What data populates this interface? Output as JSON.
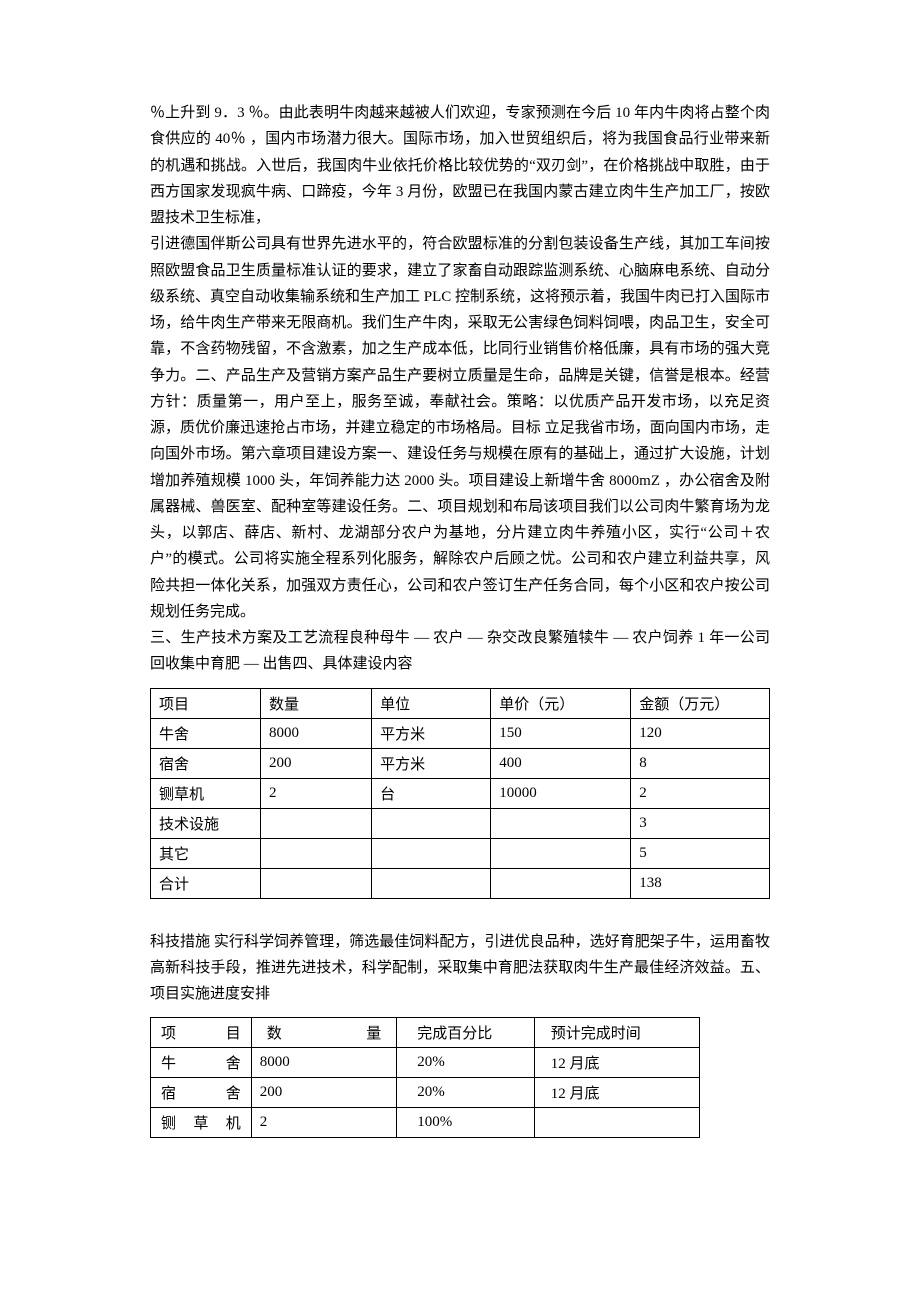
{
  "paragraphs": {
    "p1": "％上升到 9．3 ％。由此表明牛肉越来越被人们欢迎，专家预测在今后 10 年内牛肉将占整个肉食供应的 40％ ，国内市场潜力很大。国际市场，加入世贸组织后，将为我国食品行业带来新的机遇和挑战。入世后，我国肉牛业依托价格比较优势的“双刃剑”，在价格挑战中取胜，由于西方国家发现疯牛病、口蹄疫，今年 3 月份，欧盟已在我国内蒙古建立肉牛生产加工厂，按欧盟技术卫生标准，",
    "p2": "引进德国伴斯公司具有世界先进水平的，符合欧盟标准的分割包装设备生产线，其加工车间按照欧盟食品卫生质量标准认证的要求，建立了家畜自动跟踪监测系统、心脑麻电系统、自动分级系统、真空自动收集输系统和生产加工 PLC 控制系统，这将预示着，我国牛肉已打入国际市场，给牛肉生产带来无限商机。我们生产牛肉，采取无公害绿色饲料饲喂，肉品卫生，安全可靠，不含药物残留，不含激素，加之生产成本低，比同行业销售价格低廉，具有市场的强大竞争力。二、产品生产及营销方案产品生产要树立质量是生命，品牌是关键，信誉是根本。经营方针：质量第一，用户至上，服务至诚，奉献社会。策略：以优质产品开发市场，以充足资源，质优价廉迅速抢占市场，并建立稳定的市场格局。目标 立足我省市场，面向国内市场，走向国外市场。第六章项目建设方案一、建设任务与规模在原有的基础上，通过扩大设施，计划增加养殖规模 1000 头，年饲养能力达 2000 头。项目建设上新增牛舍 8000mZ ，办公宿舍及附属器械、兽医室、配种室等建设任务。二、项目规划和布局该项目我们以公司肉牛繁育场为龙头，以郭店、薛店、新村、龙湖部分农户为基地，分片建立肉牛养殖小区，实行“公司＋农户”的模式。公司将实施全程系列化服务，解除农户后顾之忧。公司和农户建立利益共享，风险共担一体化关系，加强双方责任心，公司和农户签订生产任务合同，每个小区和农户按公司规划任务完成。",
    "p3": "三、生产技术方案及工艺流程良种母牛 — 农户 — 杂交改良繁殖犊牛 — 农户饲养 1 年一公司回收集中育肥 — 出售四、具体建设内容",
    "p4": "科技措施 实行科学饲养管理，筛选最佳饲料配方，引进优良品种，选好育肥架子牛，运用畜牧高新科技手段，推进先进技术，科学配制，采取集中育肥法获取肉牛生产最佳经济效益。五、项目实施进度安排"
  },
  "table1": {
    "headers": [
      "项目",
      "数量",
      "单位",
      "单价（元）",
      "金额（万元）"
    ],
    "rows": [
      [
        "牛舍",
        "8000",
        "平方米",
        "150",
        "120"
      ],
      [
        "宿舍",
        "200",
        "平方米",
        "400",
        "8"
      ],
      [
        "铡草机",
        "2",
        "台",
        "10000",
        "2"
      ],
      [
        "技术设施",
        "",
        "",
        "",
        "3"
      ],
      [
        "其它",
        "",
        "",
        "",
        "5"
      ],
      [
        "合计",
        "",
        "",
        "",
        "138"
      ]
    ]
  },
  "table2": {
    "headers": [
      "项目",
      "数量",
      "完成百分比",
      "预计完成时间"
    ],
    "rows": [
      [
        "牛舍",
        "8000",
        "20%",
        "12 月底"
      ],
      [
        "宿舍",
        "200",
        "20%",
        "12 月底"
      ],
      [
        "铡草机",
        "2",
        "100%",
        ""
      ]
    ]
  }
}
